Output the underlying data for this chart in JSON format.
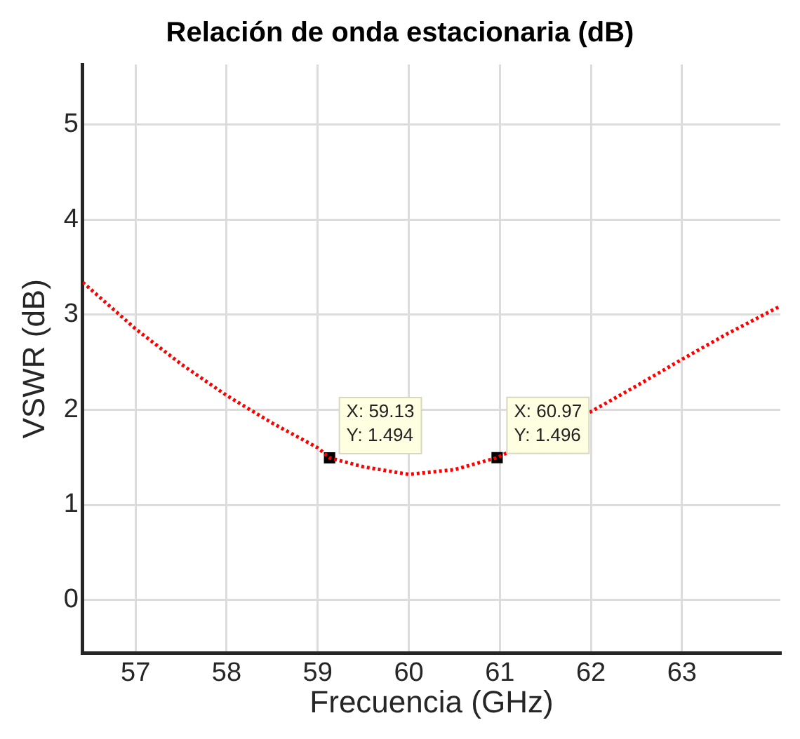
{
  "chart_data": {
    "type": "line",
    "title": "Relación de onda estacionaria (dB)",
    "xlabel": "Frecuencia (GHz)",
    "ylabel": "VSWR (dB)",
    "series": [
      {
        "color": "#ff0000",
        "line_style": "dotted",
        "marker": "none",
        "x": [
          56.42,
          57,
          57.5,
          58,
          58.5,
          59,
          59.13,
          59.5,
          60,
          60.5,
          60.97,
          62,
          62.5,
          63,
          63.5,
          64.08
        ],
        "values": [
          3.34,
          2.85,
          2.48,
          2.15,
          1.86,
          1.6,
          1.494,
          1.4,
          1.32,
          1.37,
          1.496,
          1.98,
          2.25,
          2.53,
          2.8,
          3.09
        ]
      },
      {
        "type": "scatter",
        "color": "#000000",
        "marker": "square",
        "x": [
          59.13,
          60.97
        ],
        "values": [
          1.494,
          1.496
        ],
        "value_labels": [
          "X: 59.13\nY: 1.494",
          "X: 60.97\nY: 1.496"
        ]
      }
    ],
    "xlim": [
      56.42,
      64.08
    ],
    "xticks": [
      57,
      58,
      59,
      60,
      61,
      62,
      63
    ],
    "ylim": [
      -0.56,
      5.63
    ],
    "yticks": [
      0,
      1,
      2,
      3,
      4,
      5
    ],
    "grid": true,
    "legend": false
  }
}
